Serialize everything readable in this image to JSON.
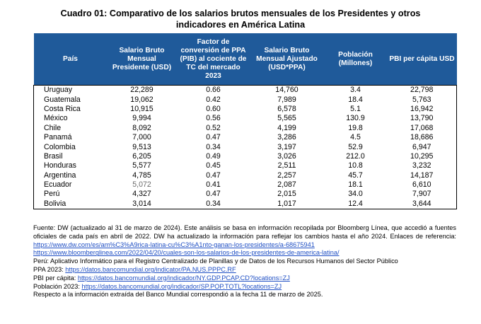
{
  "title_line1": "Cuadro 01: Comparativo de los salarios brutos mensuales de los Presidentes y otros",
  "title_line2": "indicadores en América Latina",
  "headers": [
    "País",
    "Salario Bruto Mensual Presidente (USD)",
    "Factor de conversión de PPA (PIB) al cociente de TC del mercado 2023",
    "Salario Bruto Mensual Ajustado (USD*PPA)",
    "Población (Millones)",
    "PBI per cápita USD"
  ],
  "rows": [
    {
      "country": "Uruguay",
      "salary": "22,289",
      "factor": "0.66",
      "adjusted": "14,760",
      "population": "3.4",
      "gdp": "22,798"
    },
    {
      "country": "Guatemala",
      "salary": "19,062",
      "factor": "0.42",
      "adjusted": "7,989",
      "population": "18.4",
      "gdp": "5,763"
    },
    {
      "country": "Costa Rica",
      "salary": "10,915",
      "factor": "0.60",
      "adjusted": "6,578",
      "population": "5.1",
      "gdp": "16,942"
    },
    {
      "country": "México",
      "salary": "9,994",
      "factor": "0.56",
      "adjusted": "5,565",
      "population": "130.9",
      "gdp": "13,790"
    },
    {
      "country": "Chile",
      "salary": "8,092",
      "factor": "0.52",
      "adjusted": "4,199",
      "population": "19.8",
      "gdp": "17,068"
    },
    {
      "country": "Panamá",
      "salary": "7,000",
      "factor": "0.47",
      "adjusted": "3,286",
      "population": "4.5",
      "gdp": "18,686"
    },
    {
      "country": "Colombia",
      "salary": "9,513",
      "factor": "0.34",
      "adjusted": "3,197",
      "population": "52.9",
      "gdp": "6,947"
    },
    {
      "country": "Brasil",
      "salary": "6,205",
      "factor": "0.49",
      "adjusted": "3,026",
      "population": "212.0",
      "gdp": "10,295"
    },
    {
      "country": "Honduras",
      "salary": "5,577",
      "factor": "0.45",
      "adjusted": "2,511",
      "population": "10.8",
      "gdp": "3,232"
    },
    {
      "country": "Argentina",
      "salary": "4,785",
      "factor": "0.47",
      "adjusted": "2,257",
      "population": "45.7",
      "gdp": "14,187"
    },
    {
      "country": "Ecuador",
      "salary": "5,072",
      "factor": "0.41",
      "adjusted": "2,087",
      "population": "18.1",
      "gdp": "6,610"
    },
    {
      "country": "Perú",
      "salary": "4,327",
      "factor": "0.47",
      "adjusted": "2,015",
      "population": "34.0",
      "gdp": "7,907"
    },
    {
      "country": "Bolivia",
      "salary": "3,014",
      "factor": "0.34",
      "adjusted": "1,017",
      "population": "12.4",
      "gdp": "3,644"
    }
  ],
  "highlight_color": "#1f5a9a",
  "notes": {
    "source_text": "Fuente: DW (actualizado al 31 de marzo de 2024). Este análisis se basa en información recopilada por Bloomberg Línea, que accedió a fuentes oficiales de cada país en abril de 2022. DW ha actualizado la información para reflejar los cambios hasta el año 2024. Enlaces de referencia: ",
    "link_dw": "https://www.dw.com/es/am%C3%A9rica-latina-cu%C3%A1nto-ganan-los-presidentes/a-68675941",
    "link_bloomberg": "https://www.bloomberglinea.com/2022/04/20/cuales-son-los-salarios-de-los-presidentes-de-america-latina/",
    "peru_text": "Perú: Aplicativo Informático para el Registro Centralizado de Planillas y de Datos de los Recursos Humanos del Sector Público",
    "ppa_label": "PPA 2023: ",
    "ppa_link": "https://datos.bancomundial.org/indicator/PA.NUS.PPPC.RF",
    "pbi_label": "PBI per cápita: ",
    "pbi_link": "https://datos.bancomundial.org/indicador/NY.GDP.PCAP.CD?locations=ZJ",
    "pob_label": "Población 2023: ",
    "pob_link": "https://datos.bancomundial.org/indicador/SP.POP.TOTL?locations=ZJ",
    "final_text": "Respecto a la información extraída del Banco Mundial correspondió a la fecha 11 de marzo de 2025."
  }
}
